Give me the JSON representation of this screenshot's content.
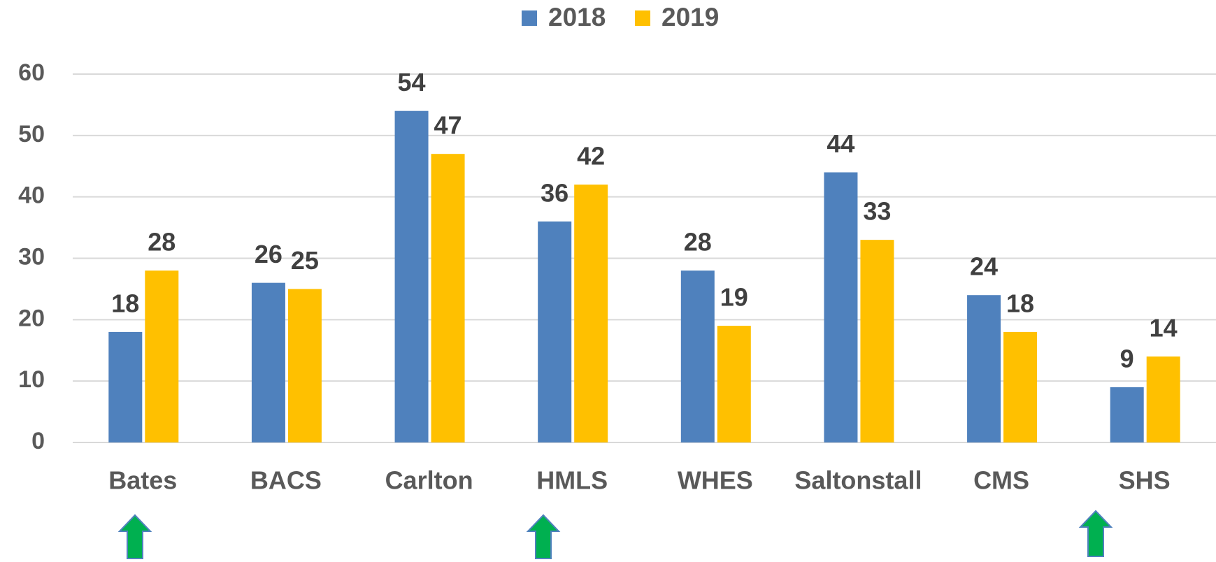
{
  "chart_data": {
    "type": "bar",
    "categories": [
      "Bates",
      "BACS",
      "Carlton",
      "HMLS",
      "WHES",
      "Saltonstall",
      "CMS",
      "SHS"
    ],
    "series": [
      {
        "name": "2018",
        "color": "#4f81bd",
        "values": [
          18,
          26,
          54,
          36,
          28,
          44,
          24,
          9
        ]
      },
      {
        "name": "2019",
        "color": "#ffc000",
        "values": [
          28,
          25,
          47,
          42,
          19,
          33,
          18,
          14
        ]
      }
    ],
    "ylim": [
      0,
      60
    ],
    "yticks": [
      0,
      10,
      20,
      30,
      40,
      50,
      60
    ],
    "grid": true,
    "legend": "top"
  }
}
